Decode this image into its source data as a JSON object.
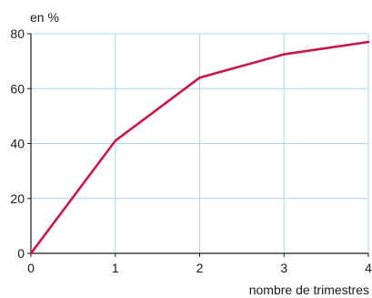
{
  "chart_data": {
    "type": "line",
    "title": "",
    "ylabel": "en %",
    "xlabel": "nombre de trimestres",
    "x": [
      0,
      1,
      2,
      3,
      4
    ],
    "series": [
      {
        "values": [
          0,
          41,
          64,
          72.5,
          77
        ]
      }
    ],
    "xlim": [
      0,
      4
    ],
    "ylim": [
      0,
      80
    ],
    "xticks": [
      "0",
      "1",
      "2",
      "3",
      "4"
    ],
    "yticks": [
      "0",
      "20",
      "40",
      "60",
      "80"
    ],
    "grid": true,
    "colors": {
      "line": "#c8174a",
      "grid": "#a9d8ee",
      "axis": "#1a1a1a"
    }
  }
}
